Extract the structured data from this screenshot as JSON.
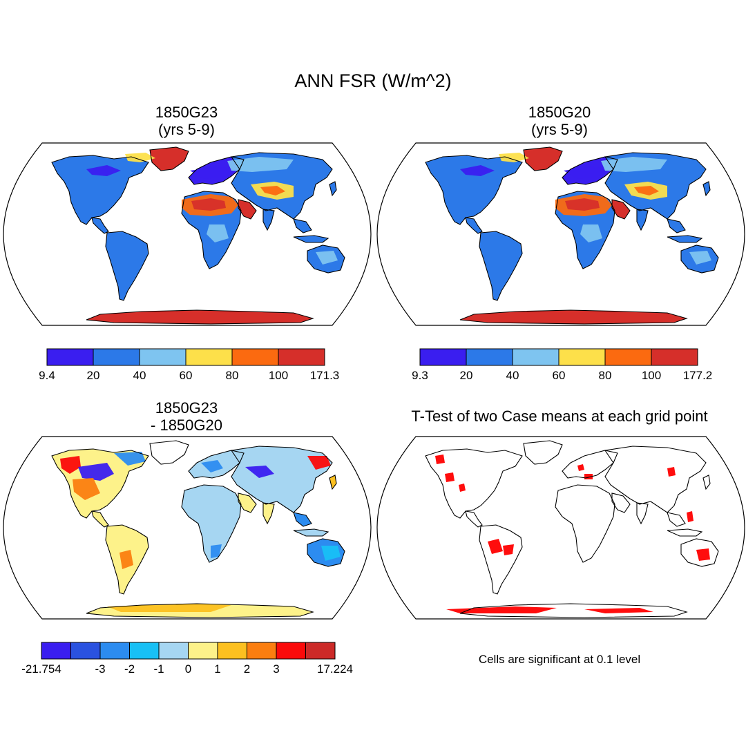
{
  "figure": {
    "title": "ANN FSR (W/m^2)",
    "panels": [
      {
        "title_line1": "1850G23",
        "title_line2": "(yrs 5-9)",
        "colorbar": {
          "tick_labels": [
            "9.4",
            "20",
            "40",
            "60",
            "80",
            "100",
            "171.3"
          ],
          "colors": [
            "#3a1ef0",
            "#2c79e8",
            "#7ec4f0",
            "#fde04a",
            "#fb6a10",
            "#d62f2a"
          ]
        }
      },
      {
        "title_line1": "1850G20",
        "title_line2": "(yrs 5-9)",
        "colorbar": {
          "tick_labels": [
            "9.3",
            "20",
            "40",
            "60",
            "80",
            "100",
            "177.2"
          ],
          "colors": [
            "#3a1ef0",
            "#2c79e8",
            "#7ec4f0",
            "#fde04a",
            "#fb6a10",
            "#d62f2a"
          ]
        }
      },
      {
        "title_line1": "1850G23",
        "title_line2": "- 1850G20",
        "colorbar": {
          "tick_labels": [
            "-21.754",
            "",
            "-3",
            "-2",
            "-1",
            "0",
            "1",
            "2",
            "3",
            "",
            "17.224"
          ],
          "colors": [
            "#3a1ef0",
            "#2a52e0",
            "#2c8cf0",
            "#18c0f5",
            "#a6d6f2",
            "#fdf28a",
            "#fcc020",
            "#fb7e10",
            "#fb0a0a",
            "#cc2a28"
          ]
        }
      },
      {
        "title_line1": "T-Test of two Case means at each grid point",
        "note": "Cells are significant at 0.1 level",
        "significant_color": "#ff0000"
      }
    ]
  }
}
